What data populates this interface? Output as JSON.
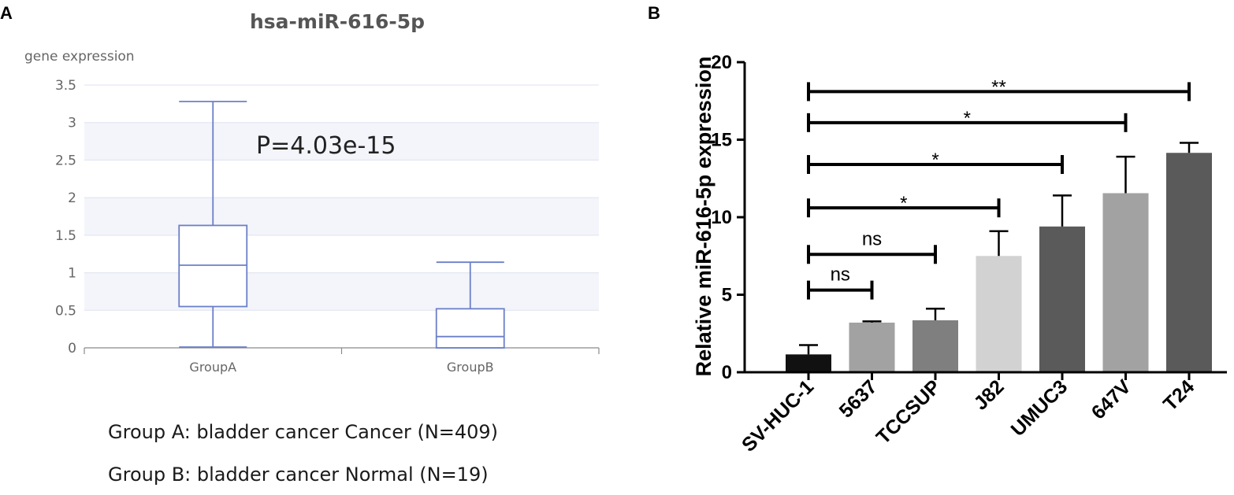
{
  "chart_data": [
    {
      "panel": "A",
      "type": "box",
      "title": "hsa-miR-616-5p",
      "ylabel": "gene expression",
      "ylim": [
        0,
        3.5
      ],
      "yticks": [
        0,
        0.5,
        1,
        1.5,
        2,
        2.5,
        3,
        3.5
      ],
      "yticklabels": [
        "0",
        "0.5",
        "1",
        "1.5",
        "2",
        "2.5",
        "3",
        "3.5"
      ],
      "categories": [
        "GroupA",
        "GroupB"
      ],
      "boxes": [
        {
          "name": "GroupA",
          "min": 0.01,
          "q1": 0.55,
          "median": 1.1,
          "q3": 1.63,
          "max": 3.28
        },
        {
          "name": "GroupB",
          "min": 0.0,
          "q1": 0.0,
          "median": 0.15,
          "q3": 0.52,
          "max": 1.14
        }
      ],
      "annotation": "P=4.03e-15",
      "legend": [
        "Group A: bladder cancer Cancer (N=409)",
        "Group B: bladder cancer Normal (N=19)"
      ],
      "colors": {
        "box_stroke": "#6b7fc8",
        "band": "#f3f5fa",
        "grid": "#dfe3f0",
        "axis": "#8a8a8a"
      }
    },
    {
      "panel": "B",
      "type": "bar",
      "ylabel": "Relative miR-616-5p expression",
      "ylim": [
        0,
        20
      ],
      "yticks": [
        0,
        5,
        10,
        15,
        20
      ],
      "yticklabels": [
        "0",
        "5",
        "10",
        "15",
        "20"
      ],
      "categories": [
        "SV-HUC-1",
        "5637",
        "TCCSUP",
        "J82",
        "UMUC3",
        "647V",
        "T24"
      ],
      "values": [
        1.15,
        3.2,
        3.35,
        7.5,
        9.4,
        11.55,
        14.15
      ],
      "errors": [
        0.6,
        0.08,
        0.75,
        1.6,
        2.0,
        2.35,
        0.65
      ],
      "colors": [
        "#111111",
        "#a2a2a2",
        "#7f7f7f",
        "#d2d2d2",
        "#5a5a5a",
        "#a2a2a2",
        "#5a5a5a"
      ],
      "comparisons": [
        {
          "from": "SV-HUC-1",
          "to": "5637",
          "y": 5.3,
          "label": "ns"
        },
        {
          "from": "SV-HUC-1",
          "to": "TCCSUP",
          "y": 7.6,
          "label": "ns"
        },
        {
          "from": "SV-HUC-1",
          "to": "J82",
          "y": 10.6,
          "label": "*"
        },
        {
          "from": "SV-HUC-1",
          "to": "UMUC3",
          "y": 13.4,
          "label": "*"
        },
        {
          "from": "SV-HUC-1",
          "to": "647V",
          "y": 16.1,
          "label": "*"
        },
        {
          "from": "SV-HUC-1",
          "to": "T24",
          "y": 18.1,
          "label": "**"
        }
      ]
    }
  ]
}
